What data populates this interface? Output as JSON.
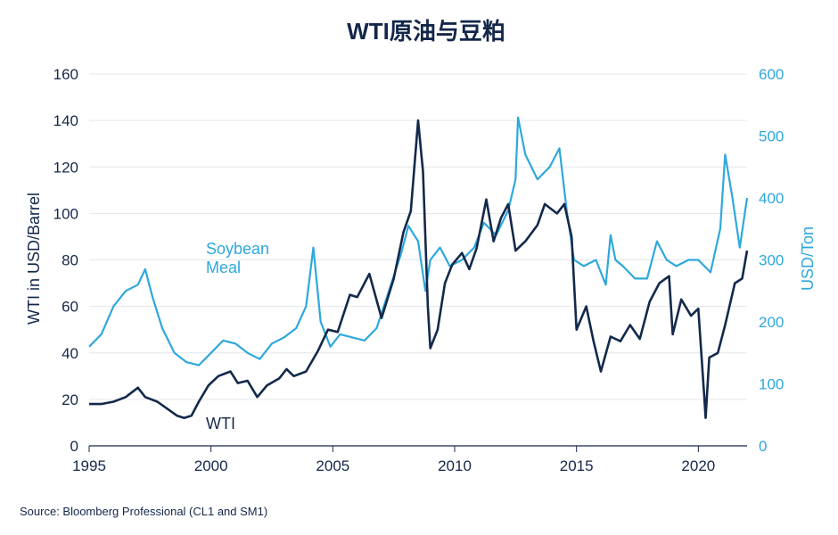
{
  "title": "WTI原油与豆粕",
  "source": "Source: Bloomberg Professional  (CL1 and SM1)",
  "colors": {
    "wti": "#13294b",
    "meal": "#2ea8dc",
    "grid": "#e3e7ec",
    "text": "#14274a"
  },
  "chart_data": {
    "type": "line",
    "title": "WTI原油与豆粕",
    "x_ticks": [
      "1995",
      "2000",
      "2005",
      "2010",
      "2015",
      "2020"
    ],
    "xlim": [
      1995,
      2022
    ],
    "y_left": {
      "label": "WTI in USD/Barrel",
      "lim": [
        0,
        160
      ],
      "ticks": [
        "0",
        "20",
        "40",
        "60",
        "80",
        "100",
        "120",
        "140",
        "160"
      ]
    },
    "y_right": {
      "label": "USD/Ton",
      "lim": [
        0,
        600
      ],
      "ticks": [
        "0",
        "100",
        "200",
        "300",
        "400",
        "500",
        "600"
      ]
    },
    "grid": true,
    "series": [
      {
        "name": "WTI",
        "axis": "left",
        "x": [
          1995.0,
          1995.5,
          1996.0,
          1996.5,
          1997.0,
          1997.3,
          1997.8,
          1998.2,
          1998.6,
          1998.9,
          1999.2,
          1999.5,
          1999.9,
          2000.3,
          2000.8,
          2001.1,
          2001.5,
          2001.9,
          2002.3,
          2002.8,
          2003.1,
          2003.4,
          2003.9,
          2004.4,
          2004.8,
          2005.2,
          2005.7,
          2006.0,
          2006.5,
          2007.0,
          2007.5,
          2007.9,
          2008.2,
          2008.5,
          2008.7,
          2008.9,
          2009.0,
          2009.3,
          2009.6,
          2009.9,
          2010.3,
          2010.6,
          2010.9,
          2011.3,
          2011.6,
          2011.9,
          2012.2,
          2012.5,
          2012.9,
          2013.4,
          2013.7,
          2014.2,
          2014.5,
          2014.8,
          2015.0,
          2015.4,
          2015.7,
          2016.0,
          2016.4,
          2016.8,
          2017.2,
          2017.6,
          2018.0,
          2018.4,
          2018.8,
          2018.95,
          2019.3,
          2019.7,
          2020.0,
          2020.25,
          2020.3,
          2020.45,
          2020.8,
          2021.1,
          2021.5,
          2021.8,
          2022.0
        ],
        "values": [
          18,
          18,
          19,
          21,
          25,
          21,
          19,
          16,
          13,
          12,
          13,
          19,
          26,
          30,
          32,
          27,
          28,
          21,
          26,
          29,
          33,
          30,
          32,
          41,
          50,
          49,
          65,
          64,
          74,
          55,
          72,
          92,
          101,
          140,
          118,
          60,
          42,
          50,
          70,
          78,
          83,
          76,
          85,
          106,
          88,
          98,
          104,
          84,
          88,
          95,
          104,
          100,
          104,
          90,
          50,
          60,
          45,
          32,
          47,
          45,
          52,
          46,
          62,
          70,
          73,
          48,
          63,
          56,
          59,
          20,
          12,
          38,
          40,
          52,
          70,
          72,
          84
        ]
      },
      {
        "name": "Soybean Meal",
        "axis": "right",
        "x": [
          1995.0,
          1995.5,
          1996.0,
          1996.5,
          1997.0,
          1997.3,
          1997.6,
          1998.0,
          1998.5,
          1999.0,
          1999.5,
          2000.0,
          2000.5,
          2001.0,
          2001.5,
          2002.0,
          2002.5,
          2003.0,
          2003.5,
          2003.9,
          2004.2,
          2004.5,
          2004.9,
          2005.3,
          2005.8,
          2006.3,
          2006.8,
          2007.3,
          2007.8,
          2008.1,
          2008.5,
          2008.8,
          2009.0,
          2009.4,
          2009.8,
          2010.3,
          2010.8,
          2011.2,
          2011.7,
          2012.2,
          2012.5,
          2012.6,
          2012.9,
          2013.4,
          2013.9,
          2014.3,
          2014.6,
          2014.9,
          2015.3,
          2015.8,
          2016.2,
          2016.4,
          2016.6,
          2016.9,
          2017.4,
          2017.9,
          2018.3,
          2018.7,
          2019.1,
          2019.6,
          2020.0,
          2020.5,
          2020.9,
          2021.1,
          2021.4,
          2021.7,
          2022.0
        ],
        "values": [
          160,
          180,
          225,
          250,
          260,
          285,
          240,
          190,
          150,
          135,
          130,
          150,
          170,
          165,
          150,
          140,
          165,
          175,
          190,
          225,
          320,
          200,
          160,
          180,
          175,
          170,
          190,
          250,
          310,
          355,
          330,
          250,
          300,
          320,
          290,
          300,
          320,
          360,
          340,
          380,
          430,
          530,
          470,
          430,
          450,
          480,
          380,
          300,
          290,
          300,
          260,
          340,
          300,
          290,
          270,
          270,
          330,
          300,
          290,
          300,
          300,
          280,
          350,
          470,
          400,
          320,
          400
        ]
      }
    ]
  },
  "labels": {
    "meal_line1": "Soybean",
    "meal_line2": "Meal",
    "wti": "WTI"
  }
}
